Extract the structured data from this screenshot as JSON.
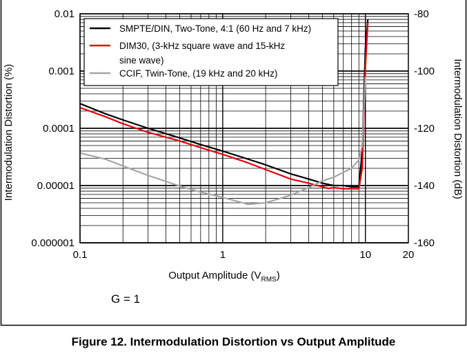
{
  "caption": "Figure 12. Intermodulation Distortion vs Output Amplitude",
  "chart_data": {
    "type": "line",
    "title": "",
    "xlabel_main": "Output Amplitude (V",
    "xlabel_sub": "RMS",
    "xlabel_close": ")",
    "ylabel_left": "Intermodulation Distortion (%)",
    "ylabel_right": "Intermodulation Distortion (dB)",
    "annotation": "G = 1",
    "x_scale": "log",
    "y_scale": "log",
    "xlim": [
      0.1,
      20
    ],
    "ylim_left": [
      1e-06,
      0.01
    ],
    "ylim_right": [
      -160,
      -80
    ],
    "grid": true,
    "legend_position": "top-right",
    "x_ticks": [
      {
        "value": 0.1,
        "label": "0.1"
      },
      {
        "value": 1,
        "label": "1"
      },
      {
        "value": 10,
        "label": "10"
      },
      {
        "value": 20,
        "label": "20"
      }
    ],
    "y_left_ticks": [
      {
        "value": 0.01,
        "label": "0.01"
      },
      {
        "value": 0.001,
        "label": "0.001"
      },
      {
        "value": 0.0001,
        "label": "0.0001"
      },
      {
        "value": 1e-05,
        "label": "0.00001"
      },
      {
        "value": 1e-06,
        "label": "0.000001"
      }
    ],
    "y_right_ticks": [
      {
        "value": -80,
        "label": "-80"
      },
      {
        "value": -100,
        "label": "-100"
      },
      {
        "value": -120,
        "label": "-120"
      },
      {
        "value": -140,
        "label": "-140"
      },
      {
        "value": -160,
        "label": "-160"
      }
    ],
    "series": [
      {
        "name": "SMPTE/DIN, Two-Tone, 4:1 (60 Hz and 7 kHz)",
        "color": "#000000",
        "x": [
          0.1,
          0.15,
          0.2,
          0.3,
          0.5,
          0.7,
          1,
          1.5,
          2,
          3,
          4,
          5,
          6,
          7,
          8,
          9,
          9.5,
          10,
          10.4
        ],
        "y": [
          0.00027,
          0.00018,
          0.00014,
          0.0001,
          6.8e-05,
          5.2e-05,
          4e-05,
          2.9e-05,
          2.3e-05,
          1.6e-05,
          1.3e-05,
          1.1e-05,
          1e-05,
          1e-05,
          9.5e-06,
          9.5e-06,
          4e-05,
          0.0025,
          0.008
        ]
      },
      {
        "name": "DIM30, (3-kHz square wave and 15-kHz sine wave)",
        "color": "#e8000b",
        "x": [
          0.1,
          0.15,
          0.2,
          0.3,
          0.5,
          0.7,
          1,
          1.5,
          2,
          3,
          4,
          5,
          5.5,
          6,
          7,
          8,
          9,
          9.5,
          10,
          10.4
        ],
        "y": [
          0.00023,
          0.00016,
          0.00012,
          8.5e-05,
          6e-05,
          4.6e-05,
          3.5e-05,
          2.5e-05,
          1.9e-05,
          1.3e-05,
          1.1e-05,
          9.5e-06,
          8.9e-06,
          9.2e-06,
          8.8e-06,
          8.8e-06,
          8.8e-06,
          2e-05,
          0.0012,
          0.007
        ]
      },
      {
        "name": "CCIF, Twin-Tone, (19 kHz and 20 kHz)",
        "color": "#a6a6a6",
        "x": [
          0.1,
          0.15,
          0.2,
          0.3,
          0.5,
          0.7,
          1,
          1.3,
          1.5,
          2,
          3,
          4,
          5,
          6,
          7,
          8,
          9,
          9.5,
          10
        ],
        "y": [
          3.7e-05,
          2.9e-05,
          2.2e-05,
          1.5e-05,
          9.8e-06,
          7.7e-06,
          6.2e-06,
          5.2e-06,
          4.7e-06,
          5e-06,
          6.8e-06,
          9.2e-06,
          1.2e-05,
          1.4e-05,
          1.7e-05,
          2e-05,
          2.8e-05,
          5e-05,
          0.0008
        ]
      }
    ],
    "legend": [
      {
        "lines": [
          "SMPTE/DIN, Two-Tone, 4:1 (60 Hz and 7 kHz)"
        ],
        "color": "#000000"
      },
      {
        "lines": [
          "DIM30, (3-kHz square wave and 15-kHz",
          "sine wave)"
        ],
        "color": "#e8000b"
      },
      {
        "lines": [
          "CCIF, Twin-Tone, (19 kHz and 20 kHz)"
        ],
        "color": "#a6a6a6"
      }
    ]
  }
}
